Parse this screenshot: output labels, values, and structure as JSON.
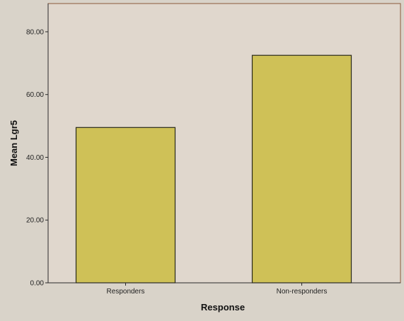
{
  "chart_data": {
    "type": "bar",
    "categories": [
      "Responders",
      "Non-responders"
    ],
    "values": [
      49.5,
      72.5
    ],
    "xlabel": "Response",
    "ylabel": "Mean Lgr5",
    "ylim": [
      0,
      89
    ],
    "yticks": [
      0,
      20,
      40,
      60,
      80
    ],
    "ytick_labels": [
      "0.00",
      "20.00",
      "40.00",
      "60.00",
      "80.00"
    ],
    "grid": false,
    "colors": {
      "page_background": "#d9d3c9",
      "plot_background": "#e0d7cd",
      "plot_border": "#8a5a3a",
      "bar_fill": "#cfc157",
      "bar_stroke": "#2a2a1a",
      "axis_line": "#2a2a2a"
    }
  }
}
